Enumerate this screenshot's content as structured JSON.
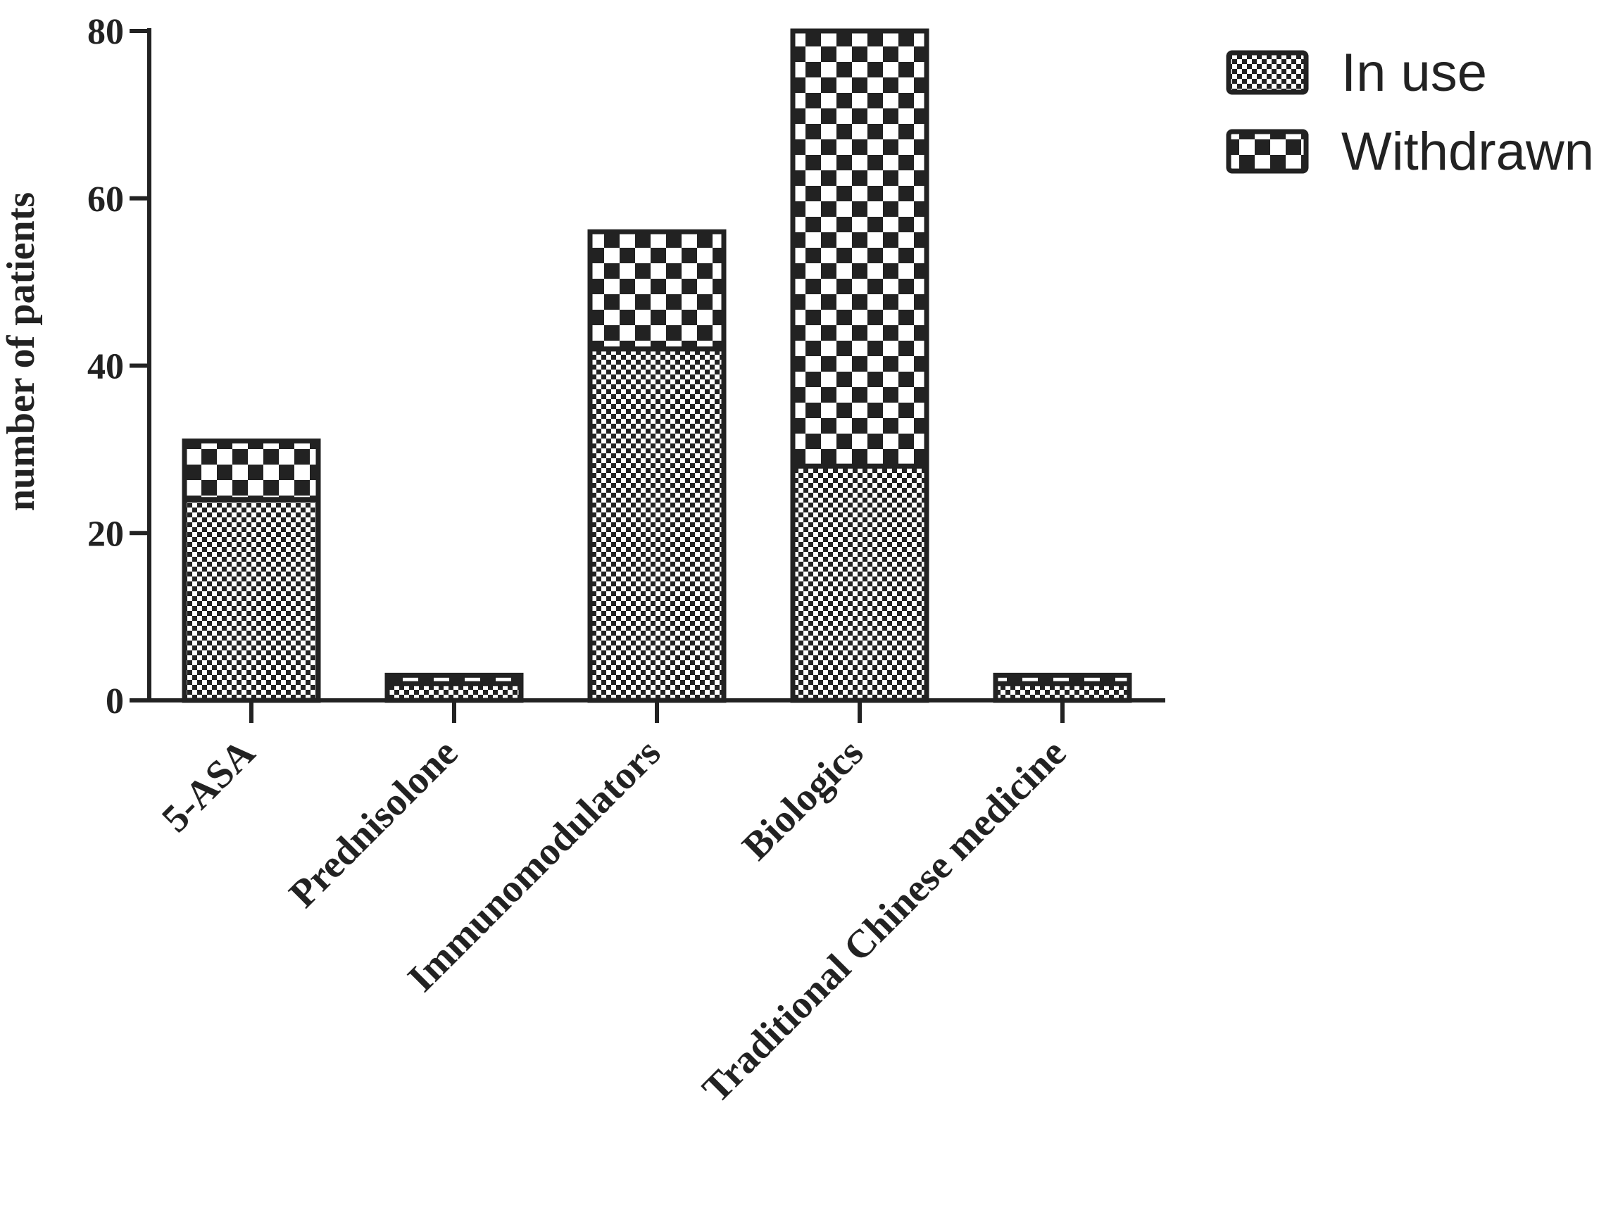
{
  "chart_data": {
    "type": "bar",
    "stacked": true,
    "categories": [
      "5-ASA",
      "Prednisolone",
      "Immunomodulators",
      "Biologics",
      "Traditional Chinese medicine"
    ],
    "series": [
      {
        "name": "In use",
        "values": [
          24,
          2,
          42,
          28,
          2
        ],
        "pattern": "fine-checker"
      },
      {
        "name": "Withdrawn",
        "values": [
          7,
          1,
          14,
          52,
          1
        ],
        "pattern": "coarse-checker"
      }
    ],
    "xlabel": "",
    "ylabel": "number of patients",
    "ylim": [
      0,
      80
    ],
    "yticks": [
      0,
      20,
      40,
      60,
      80
    ],
    "grid": false,
    "legend_position": "top-right",
    "colors": {
      "ink": "#222222",
      "fill": "#ffffff"
    }
  }
}
